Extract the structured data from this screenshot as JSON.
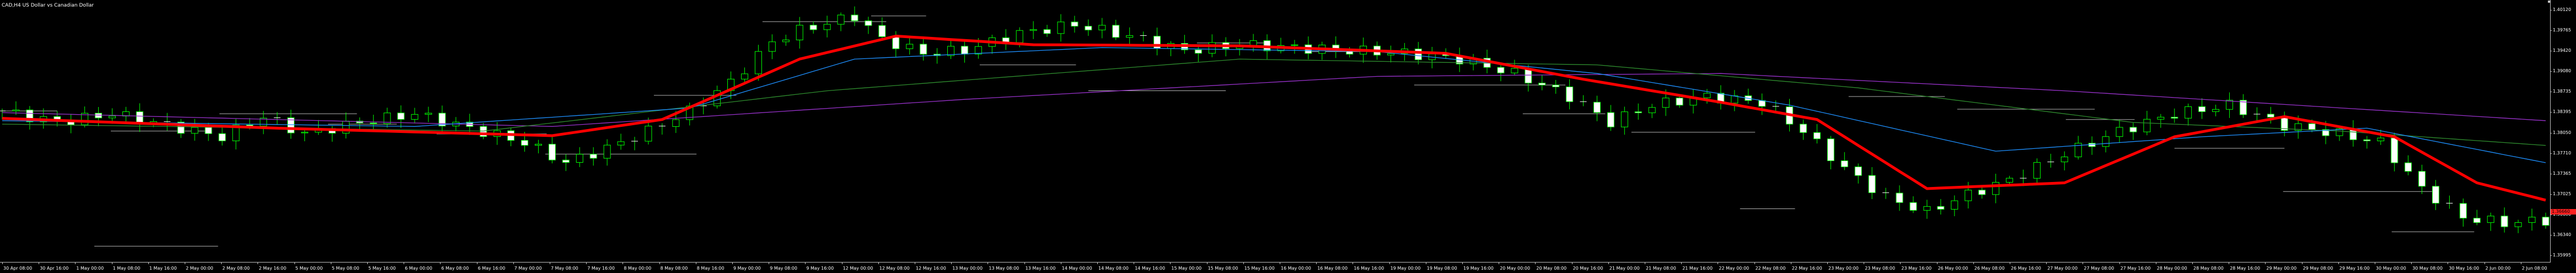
{
  "window": {
    "title": "CAD,H4  US Dollar vs Canadian Dollar"
  },
  "colors": {
    "background": "#000000",
    "candle": "#00ff00",
    "doji": "#ffffff",
    "axis": "#c0c0c0",
    "text": "#ffffff",
    "ma_fast": "#ff0000",
    "ma_blue": "#1e90ff",
    "ma_green": "#2e8b2e",
    "ma_violet": "#9932cc",
    "level_lines": "#b0b0b0",
    "current_price_label": "#ff2020"
  },
  "price_axis": {
    "labels": [
      "1.40120",
      "1.39765",
      "1.39420",
      "1.39080",
      "1.38735",
      "1.38395",
      "1.38050",
      "1.37710",
      "1.37365",
      "1.37025",
      "1.36680",
      "1.36340",
      "1.35995"
    ],
    "current_price": "1.36660"
  },
  "time_axis": {
    "labels": [
      "30 Apr 08:00",
      "30 Apr 16:00",
      "1 May 00:00",
      "1 May 08:00",
      "1 May 16:00",
      "2 May 00:00",
      "2 May 08:00",
      "2 May 16:00",
      "5 May 00:00",
      "5 May 08:00",
      "5 May 16:00",
      "6 May 00:00",
      "6 May 08:00",
      "6 May 16:00",
      "7 May 00:00",
      "7 May 08:00",
      "7 May 16:00",
      "8 May 00:00",
      "8 May 08:00",
      "8 May 16:00",
      "9 May 00:00",
      "9 May 08:00",
      "9 May 16:00",
      "12 May 00:00",
      "12 May 08:00",
      "12 May 16:00",
      "13 May 00:00",
      "13 May 08:00",
      "13 May 16:00",
      "14 May 00:00",
      "14 May 08:00",
      "14 May 16:00",
      "15 May 00:00",
      "15 May 08:00",
      "15 May 16:00",
      "16 May 00:00",
      "16 May 08:00",
      "16 May 16:00",
      "19 May 00:00",
      "19 May 08:00",
      "19 May 16:00",
      "20 May 00:00",
      "20 May 08:00",
      "20 May 16:00",
      "21 May 00:00",
      "21 May 08:00",
      "21 May 16:00",
      "22 May 00:00",
      "22 May 08:00",
      "22 May 16:00",
      "23 May 00:00",
      "23 May 08:00",
      "23 May 16:00",
      "26 May 00:00",
      "26 May 08:00",
      "26 May 16:00",
      "27 May 00:00",
      "27 May 08:00",
      "27 May 16:00",
      "28 May 00:00",
      "28 May 08:00",
      "28 May 16:00",
      "29 May 00:00",
      "29 May 08:00",
      "29 May 16:00",
      "30 May 00:00",
      "30 May 08:00",
      "30 May 16:00",
      "2 Jun 00:00",
      "2 Jun 08:00"
    ]
  },
  "chart_data": {
    "type": "candlestick",
    "symbol": "USDCAD",
    "timeframe": "H4",
    "ylim": [
      1.3585,
      1.402
    ],
    "close_path": [
      [
        0,
        1.3835
      ],
      [
        4,
        1.3815
      ],
      [
        8,
        1.383
      ],
      [
        12,
        1.381
      ],
      [
        16,
        1.379
      ],
      [
        19,
        1.3825
      ],
      [
        22,
        1.3795
      ],
      [
        26,
        1.3815
      ],
      [
        30,
        1.383
      ],
      [
        34,
        1.3805
      ],
      [
        38,
        1.378
      ],
      [
        41,
        1.3745
      ],
      [
        44,
        1.377
      ],
      [
        47,
        1.38
      ],
      [
        50,
        1.3835
      ],
      [
        53,
        1.3885
      ],
      [
        56,
        1.3955
      ],
      [
        58,
        1.3975
      ],
      [
        62,
        1.4
      ],
      [
        64,
        1.396
      ],
      [
        67,
        1.3935
      ],
      [
        70,
        1.394
      ],
      [
        74,
        1.397
      ],
      [
        78,
        1.3985
      ],
      [
        82,
        1.3965
      ],
      [
        86,
        1.394
      ],
      [
        90,
        1.395
      ],
      [
        94,
        1.3945
      ],
      [
        98,
        1.394
      ],
      [
        102,
        1.3935
      ],
      [
        106,
        1.3925
      ],
      [
        110,
        1.39
      ],
      [
        114,
        1.386
      ],
      [
        117,
        1.3815
      ],
      [
        120,
        1.3845
      ],
      [
        124,
        1.386
      ],
      [
        128,
        1.385
      ],
      [
        131,
        1.38
      ],
      [
        134,
        1.3735
      ],
      [
        137,
        1.3685
      ],
      [
        140,
        1.366
      ],
      [
        143,
        1.369
      ],
      [
        146,
        1.3715
      ],
      [
        150,
        1.376
      ],
      [
        154,
        1.38
      ],
      [
        158,
        1.383
      ],
      [
        162,
        1.3845
      ],
      [
        166,
        1.381
      ],
      [
        170,
        1.3795
      ],
      [
        173,
        1.378
      ],
      [
        176,
        1.37
      ],
      [
        179,
        1.365
      ],
      [
        182,
        1.364
      ],
      [
        185,
        1.3645
      ]
    ],
    "moving_averages": [
      {
        "color": "red",
        "path": [
          [
            0,
            1.3822
          ],
          [
            20,
            1.3805
          ],
          [
            40,
            1.3792
          ],
          [
            48,
            1.382
          ],
          [
            58,
            1.3925
          ],
          [
            65,
            1.3965
          ],
          [
            75,
            1.395
          ],
          [
            90,
            1.3948
          ],
          [
            105,
            1.3935
          ],
          [
            115,
            1.389
          ],
          [
            125,
            1.385
          ],
          [
            132,
            1.382
          ],
          [
            140,
            1.37
          ],
          [
            150,
            1.371
          ],
          [
            158,
            1.379
          ],
          [
            166,
            1.3825
          ],
          [
            174,
            1.379
          ],
          [
            180,
            1.371
          ],
          [
            185,
            1.368
          ]
        ]
      },
      {
        "color": "blue",
        "path": [
          [
            0,
            1.3818
          ],
          [
            30,
            1.3808
          ],
          [
            50,
            1.384
          ],
          [
            62,
            1.3925
          ],
          [
            80,
            1.3945
          ],
          [
            100,
            1.3938
          ],
          [
            116,
            1.39
          ],
          [
            130,
            1.3845
          ],
          [
            145,
            1.3765
          ],
          [
            160,
            1.379
          ],
          [
            172,
            1.3805
          ],
          [
            185,
            1.3745
          ]
        ]
      },
      {
        "color": "green",
        "path": [
          [
            0,
            1.3812
          ],
          [
            35,
            1.38
          ],
          [
            60,
            1.387
          ],
          [
            90,
            1.3925
          ],
          [
            116,
            1.3915
          ],
          [
            135,
            1.3875
          ],
          [
            155,
            1.3815
          ],
          [
            170,
            1.38
          ],
          [
            185,
            1.3775
          ]
        ]
      },
      {
        "color": "violet",
        "path": [
          [
            0,
            1.3832
          ],
          [
            40,
            1.3808
          ],
          [
            70,
            1.3855
          ],
          [
            100,
            1.3895
          ],
          [
            125,
            1.39
          ],
          [
            150,
            1.387
          ],
          [
            185,
            1.3818
          ]
        ]
      }
    ],
    "horizontal_levels": [
      1.3835,
      1.38,
      1.383,
      1.3812,
      1.3795,
      1.376,
      1.3862,
      1.399,
      1.4,
      1.3915,
      1.387,
      1.3953,
      1.3938,
      1.388,
      1.383,
      1.3798,
      1.3665,
      1.386,
      1.3838,
      1.382,
      1.377,
      1.3695,
      1.3625,
      1.36
    ],
    "grid": false
  }
}
